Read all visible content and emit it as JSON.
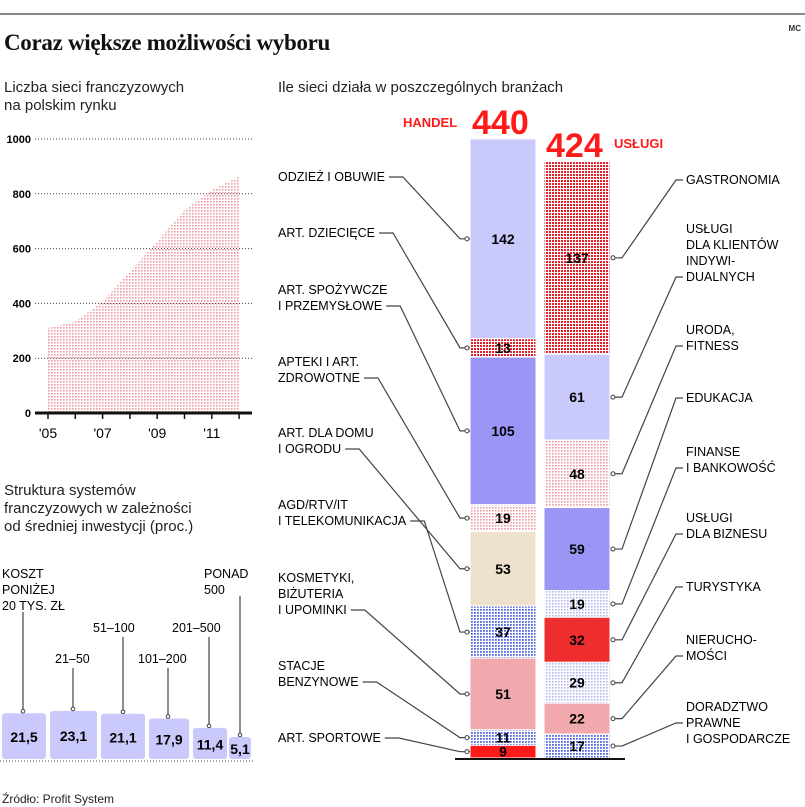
{
  "header": {
    "title": "Coraz większe możliwości wyboru",
    "credit": "MC"
  },
  "left_top": {
    "subtitle": [
      "Liczba sieci franczyzowych",
      "na polskim rynku"
    ]
  },
  "left_bottom": {
    "subtitle": [
      "Struktura systemów",
      "franczyzowych w zależności",
      "od średniej inwestycji (proc.)"
    ]
  },
  "right": {
    "subtitle": "Ile sieci działa w poszczególnych branżach"
  },
  "source": "Źródło: Profit System",
  "colors": {
    "accent_red": "#ff1a1a",
    "lavender": "#c9c9fb",
    "purple": "#9b96f5",
    "beige": "#efe2cd",
    "pink": "#f2a9ad",
    "red": "#ee2e2e",
    "dot_red": "#e4202a",
    "dot_pink": "#ee9aa2",
    "dot_blue": "#5468e0",
    "dot_pale": "#b4b4ee"
  },
  "chart_data": [
    {
      "type": "area",
      "x": [
        2005,
        2006,
        2007,
        2008,
        2009,
        2010,
        2011,
        2012
      ],
      "values": [
        310,
        334,
        407,
        516,
        626,
        741,
        814,
        863
      ],
      "ylim": [
        0,
        1000
      ],
      "yticks": [
        0,
        200,
        400,
        600,
        800,
        1000
      ],
      "xtick_labels": [
        {
          "year": 2005,
          "label": "'05"
        },
        {
          "year": 2007,
          "label": "'07"
        },
        {
          "year": 2009,
          "label": "'09"
        },
        {
          "year": 2011,
          "label": "'11"
        }
      ],
      "grid": true,
      "fill": "dot_pink"
    },
    {
      "type": "bar",
      "stacked": true,
      "series": [
        {
          "name": "HANDEL",
          "total": "440",
          "segments": [
            {
              "label": [
                "ODZIEŻ I OBUWIE"
              ],
              "value": 142,
              "fill": "lavender"
            },
            {
              "label": [
                "ART. DZIECIĘCE"
              ],
              "value": 13,
              "fill": "dot_red"
            },
            {
              "label": [
                "ART. SPOŻYWCZE",
                "I PRZEMYSŁOWE"
              ],
              "value": 105,
              "fill": "purple"
            },
            {
              "label": [
                "APTEKI I ART.",
                "ZDROWOTNE"
              ],
              "value": 19,
              "fill": "dot_pink"
            },
            {
              "label": [
                "ART. DLA DOMU",
                "I OGRODU"
              ],
              "value": 53,
              "fill": "beige"
            },
            {
              "label": [
                "AGD/RTV/IT",
                "I TELEKOMUNIKACJA"
              ],
              "value": 37,
              "fill": "dot_blue"
            },
            {
              "label": [
                "KOSMETYKI,",
                "BIŻUTERIA",
                "I UPOMINKI"
              ],
              "value": 51,
              "fill": "pink"
            },
            {
              "label": [
                "STACJE",
                "BENZYNOWE"
              ],
              "value": 11,
              "fill": "dot_blue"
            },
            {
              "label": [
                "ART. SPORTOWE"
              ],
              "value": 9,
              "fill": "accent_red"
            }
          ]
        },
        {
          "name": "USŁUGI",
          "total": "424",
          "segments": [
            {
              "label": [
                "GASTRONOMIA"
              ],
              "value": 137,
              "fill": "dot_red"
            },
            {
              "label": [
                "USŁUGI",
                "DLA KLIENTÓW",
                "INDYWI-",
                "DUALNYCH"
              ],
              "value": 61,
              "fill": "lavender"
            },
            {
              "label": [
                "URODA,",
                "FITNESS"
              ],
              "value": 48,
              "fill": "dot_pink"
            },
            {
              "label": [
                "EDUKACJA"
              ],
              "value": 59,
              "fill": "purple"
            },
            {
              "label": [
                "FINANSE",
                "I BANKOWOŚĆ"
              ],
              "value": 19,
              "fill": "dot_pale"
            },
            {
              "label": [
                "USŁUGI",
                "DLA BIZNESU"
              ],
              "value": 32,
              "fill": "red"
            },
            {
              "label": [
                "TURYSTYKA"
              ],
              "value": 29,
              "fill": "dot_pale"
            },
            {
              "label": [
                "NIERUCHO-",
                "MOŚCI"
              ],
              "value": 22,
              "fill": "pink"
            },
            {
              "label": [
                "DORADZTWO",
                "PRAWNE",
                "I GOSPODARCZE"
              ],
              "value": 17,
              "fill": "dot_blue"
            }
          ]
        }
      ]
    },
    {
      "type": "bar",
      "categories": [
        [
          "KOSZT",
          "PONIŻEJ",
          "20 TYS. ZŁ"
        ],
        [
          "21–50"
        ],
        [
          "51–100"
        ],
        [
          "101–200"
        ],
        [
          "201–500"
        ],
        [
          "PONAD",
          "500"
        ]
      ],
      "values": [
        21.5,
        23.1,
        21.1,
        17.9,
        11.4,
        5.1
      ],
      "value_labels": [
        "21,5",
        "23,1",
        "21,1",
        "17,9",
        "11,4",
        "5,1"
      ],
      "unit": "proc.",
      "fill": "lavender"
    }
  ]
}
